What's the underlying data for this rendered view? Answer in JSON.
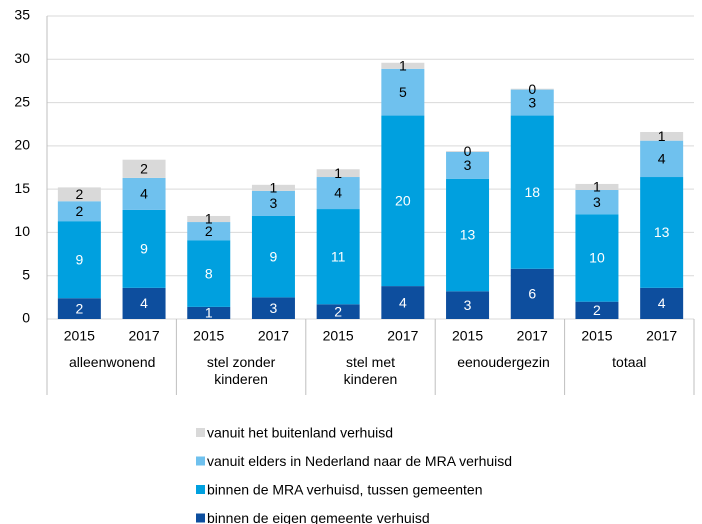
{
  "chart_data": {
    "type": "stacked_bar",
    "categories": [
      "2015",
      "2017",
      "2015",
      "2017",
      "2015",
      "2017",
      "2015",
      "2017",
      "2015",
      "2017"
    ],
    "groups": [
      "alleenwonend",
      "stel zonder kinderen",
      "stel met kinderen",
      "eenoudergezin",
      "totaal"
    ],
    "series": [
      {
        "name": "binnen de eigen gemeente verhuisd",
        "color": "#0d4e9e",
        "values": [
          2.4,
          3.6,
          1.4,
          2.5,
          1.7,
          3.8,
          3.2,
          5.8,
          2.0,
          3.6
        ],
        "value_labels": [
          "2",
          "4",
          "1",
          "3",
          "2",
          "4",
          "3",
          "6",
          "2",
          "4"
        ]
      },
      {
        "name": "binnen de MRA verhuisd, tussen gemeenten",
        "color": "#00a0df",
        "values": [
          8.9,
          9.0,
          7.7,
          9.4,
          11.0,
          19.7,
          13.0,
          17.7,
          10.1,
          12.8
        ],
        "value_labels": [
          "9",
          "9",
          "8",
          "9",
          "11",
          "20",
          "13",
          "18",
          "10",
          "13"
        ]
      },
      {
        "name": "vanuit elders in Nederland naar de MRA verhuisd",
        "color": "#6fc1ee",
        "values": [
          2.3,
          3.7,
          2.1,
          2.9,
          3.7,
          5.4,
          3.1,
          3.0,
          2.8,
          4.2
        ],
        "value_labels": [
          "2",
          "4",
          "2",
          "3",
          "4",
          "5",
          "3",
          "3",
          "3",
          "4"
        ]
      },
      {
        "name": "vanuit het buitenland verhuisd",
        "color": "#d9d9d9",
        "values": [
          1.6,
          2.1,
          0.7,
          0.7,
          0.9,
          0.7,
          0.1,
          0.1,
          0.7,
          1.0
        ],
        "value_labels": [
          "2",
          "2",
          "1",
          "1",
          "1",
          "1",
          "0",
          "0",
          "1",
          "1"
        ]
      }
    ],
    "ylim": [
      0,
      35
    ],
    "yticks": [
      0,
      5,
      10,
      15,
      20,
      25,
      30,
      35
    ],
    "grid": true
  }
}
